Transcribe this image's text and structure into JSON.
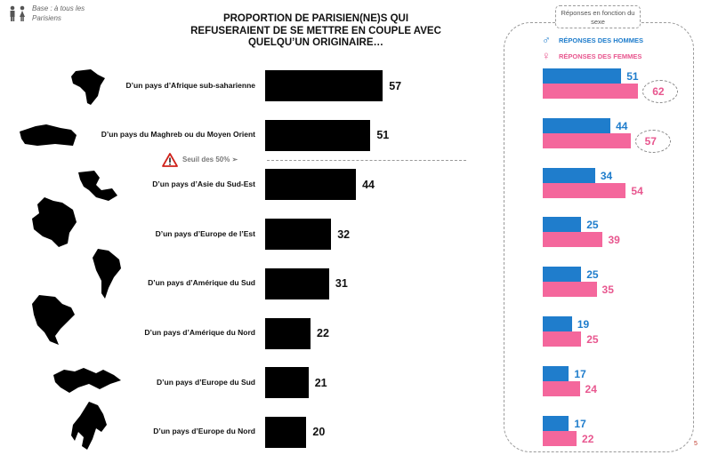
{
  "header": {
    "base_note": "Base : à tous les Parisiens"
  },
  "threshold": {
    "label": "Seuil des 50% ➢",
    "value": 50
  },
  "panel": {
    "title": "Réponses en fonction du sexe",
    "legend_men": "RÉPONSES DES HOMMES",
    "legend_women": "RÉPONSES DES FEMMES",
    "men_symbol": "♂",
    "women_symbol": "♀"
  },
  "page_number": "5",
  "colors": {
    "overall": "#000000",
    "men": "#1f7dcc",
    "women": "#f4679c"
  },
  "icons": [
    "people-icon",
    "warning-icon",
    "male-icon",
    "female-icon"
  ],
  "chart_data": [
    {
      "type": "bar",
      "orientation": "horizontal",
      "title": "PROPORTION DE PARISIEN(NE)S QUI REFUSERAIENT DE SE METTRE EN COUPLE AVEC QUELQU’UN ORIGINAIRE…",
      "categories": [
        "D’un pays d’Afrique sub-saharienne",
        "D’un pays du Maghreb ou du Moyen Orient",
        "D’un pays d’Asie du Sud-Est",
        "D’un pays d’Europe de l’Est",
        "D’un pays d’Amérique du Sud",
        "D’un pays d’Amérique du Nord",
        "D’un pays d’Europe du Sud",
        "D’un pays d’Europe du Nord"
      ],
      "values": [
        57,
        51,
        44,
        32,
        31,
        22,
        21,
        20
      ],
      "xlim": [
        0,
        100
      ]
    },
    {
      "type": "bar",
      "orientation": "horizontal",
      "title": "Réponses en fonction du sexe",
      "categories": [
        "D’un pays d’Afrique sub-saharienne",
        "D’un pays du Maghreb ou du Moyen Orient",
        "D’un pays d’Asie du Sud-Est",
        "D’un pays d’Europe de l’Est",
        "D’un pays d’Amérique du Sud",
        "D’un pays d’Amérique du Nord",
        "D’un pays d’Europe du Sud",
        "D’un pays d’Europe du Nord"
      ],
      "series": [
        {
          "name": "RÉPONSES DES HOMMES",
          "values": [
            51,
            44,
            34,
            25,
            25,
            19,
            17,
            17
          ]
        },
        {
          "name": "RÉPONSES DES FEMMES",
          "values": [
            62,
            57,
            54,
            39,
            35,
            25,
            24,
            22
          ]
        }
      ],
      "highlighted_women_indices": [
        0,
        1
      ],
      "xlim": [
        0,
        100
      ]
    }
  ]
}
